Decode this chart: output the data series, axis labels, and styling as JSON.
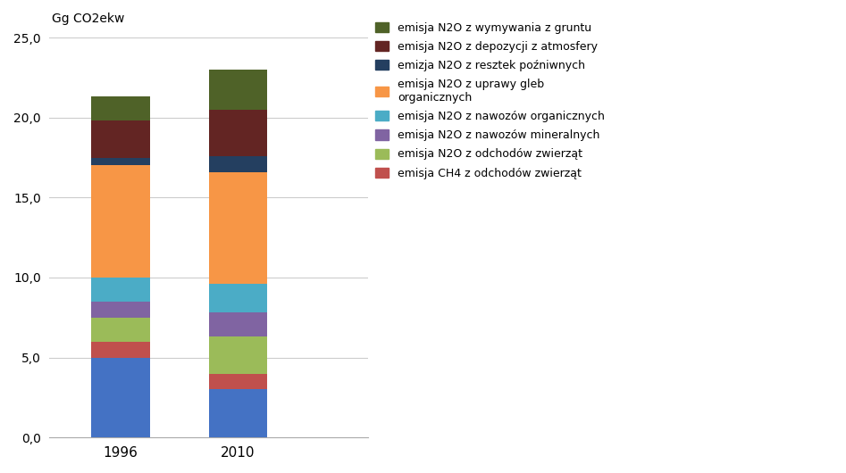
{
  "categories": [
    "1996",
    "2010"
  ],
  "series": [
    {
      "label": "emisja CH4 z odchodów zwierząt",
      "color": "#4472C4",
      "values": [
        5.0,
        3.0
      ]
    },
    {
      "label": "emisja CH4 z odchodów zwierząt (red)",
      "color": "#C0504D",
      "values": [
        1.0,
        1.0
      ]
    },
    {
      "label": "emisja N2O z odchodów zwierząt",
      "color": "#9BBB59",
      "values": [
        1.5,
        2.3
      ]
    },
    {
      "label": "emisja N2O z nawozów mineralnych",
      "color": "#8064A2",
      "values": [
        1.0,
        1.5
      ]
    },
    {
      "label": "emisja N2O z nawozów organicznych",
      "color": "#4BACC6",
      "values": [
        1.5,
        1.8
      ]
    },
    {
      "label": "emisja N2O z uprawy gleb organicznych",
      "color": "#F79646",
      "values": [
        7.0,
        7.0
      ]
    },
    {
      "label": "emizja N2O z resztek poźniwnych",
      "color": "#243F60",
      "values": [
        0.5,
        1.0
      ]
    },
    {
      "label": "emisja N2O z depozycji z atmosfery",
      "color": "#632523",
      "values": [
        2.3,
        2.9
      ]
    },
    {
      "label": "emisja N2O z wymywania z gruntu",
      "color": "#4F6228",
      "values": [
        1.5,
        2.5
      ]
    }
  ],
  "ylabel": "Gg CO2ekw",
  "ylim": [
    0,
    25
  ],
  "yticks": [
    0.0,
    5.0,
    10.0,
    15.0,
    20.0,
    25.0
  ],
  "bar_width": 0.5,
  "bar_positions": [
    0,
    1
  ],
  "legend_labels": [
    "emisja N2O z wymywania z gruntu",
    "emisja N2O z depozycji z atmosfery",
    "emizja N2O z resztek poźniwnych",
    "emisja N2O z uprawy gleb\norganicznych",
    "emisja N2O z nawozów organicznych",
    "emisja N2O z nawozów mineralnych",
    "emisja N2O z odchodów zwierząt",
    "emisja CH4 z odchodów zwierząt"
  ],
  "legend_colors": [
    "#4F6228",
    "#632523",
    "#243F60",
    "#F79646",
    "#4BACC6",
    "#8064A2",
    "#9BBB59",
    "#C0504D"
  ]
}
